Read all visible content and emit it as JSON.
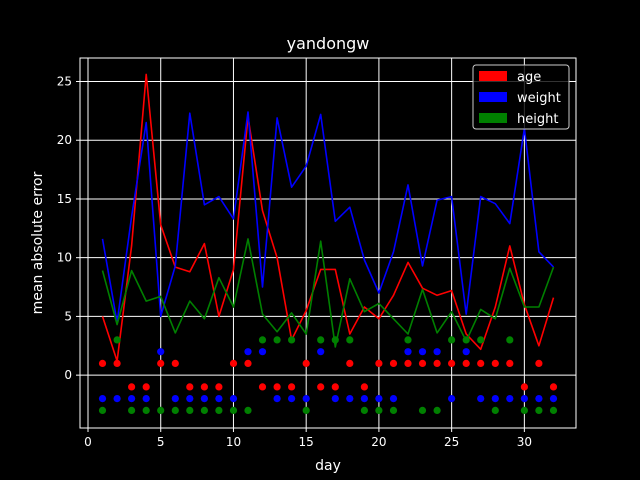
{
  "chart_data": {
    "type": "line",
    "title": "yandongw",
    "xlabel": "day",
    "ylabel": "mean absolute error",
    "xlim": [
      -0.55,
      33.55
    ],
    "ylim": [
      -4.5,
      27.0
    ],
    "xticks": [
      0,
      5,
      10,
      15,
      20,
      25,
      30
    ],
    "yticks": [
      0,
      5,
      10,
      15,
      20,
      25
    ],
    "grid": true,
    "legend_position": "top-right",
    "background": "#000000",
    "x": [
      1,
      2,
      3,
      4,
      5,
      6,
      7,
      8,
      9,
      10,
      11,
      12,
      13,
      14,
      15,
      16,
      17,
      18,
      19,
      20,
      21,
      22,
      23,
      24,
      25,
      26,
      27,
      28,
      29,
      30,
      31,
      32
    ],
    "series": [
      {
        "name": "age",
        "color": "#ff0000",
        "values": [
          5.0,
          1.2,
          11.0,
          25.6,
          12.8,
          9.2,
          8.8,
          11.2,
          5.0,
          9.0,
          22.0,
          14.0,
          10.0,
          3.0,
          5.5,
          9.0,
          9.0,
          3.5,
          5.8,
          4.8,
          6.8,
          9.6,
          7.4,
          6.8,
          7.2,
          3.5,
          2.2,
          5.8,
          11.0,
          6.0,
          2.5,
          6.6
        ],
        "markers": [
          1,
          1,
          -1,
          -1,
          1,
          1,
          -1,
          -1,
          -1,
          1,
          1,
          -1,
          -1,
          -1,
          1,
          -1,
          -1,
          1,
          -1,
          1,
          1,
          1,
          1,
          1,
          1,
          1,
          1,
          1,
          1,
          -1,
          1,
          -1
        ]
      },
      {
        "name": "weight",
        "color": "#0000ff",
        "values": [
          11.6,
          4.5,
          13.5,
          21.5,
          5.0,
          9.3,
          22.3,
          14.5,
          15.2,
          13.3,
          22.4,
          7.5,
          21.9,
          16.0,
          17.8,
          22.2,
          13.1,
          14.3,
          9.8,
          7.0,
          10.5,
          16.2,
          9.3,
          14.9,
          15.2,
          5.2,
          15.2,
          14.6,
          12.9,
          21.0,
          10.5,
          9.2
        ],
        "markers": [
          -2,
          -2,
          -2,
          -2,
          2,
          -2,
          -2,
          -2,
          -2,
          -2,
          2,
          2,
          -2,
          -2,
          -2,
          2,
          -2,
          -2,
          -2,
          -2,
          -2,
          2,
          2,
          2,
          -2,
          2,
          -2,
          -2,
          -2,
          -2,
          -2,
          -2
        ]
      },
      {
        "name": "height",
        "color": "#008000",
        "values": [
          8.9,
          4.3,
          8.9,
          6.3,
          6.7,
          3.6,
          6.3,
          4.8,
          8.3,
          5.8,
          11.6,
          5.2,
          3.7,
          5.3,
          3.5,
          11.4,
          2.4,
          8.2,
          5.4,
          6.1,
          4.8,
          3.5,
          7.3,
          3.6,
          5.4,
          2.9,
          5.6,
          4.8,
          9.1,
          5.8,
          5.8,
          9.2
        ],
        "markers": [
          -3,
          3,
          -3,
          -3,
          -3,
          -3,
          -3,
          -3,
          -3,
          -3,
          -3,
          3,
          3,
          3,
          -3,
          3,
          3,
          3,
          -3,
          -3,
          -3,
          3,
          -3,
          -3,
          3,
          3,
          3,
          -3,
          3,
          -3,
          -3,
          -3
        ]
      }
    ]
  }
}
